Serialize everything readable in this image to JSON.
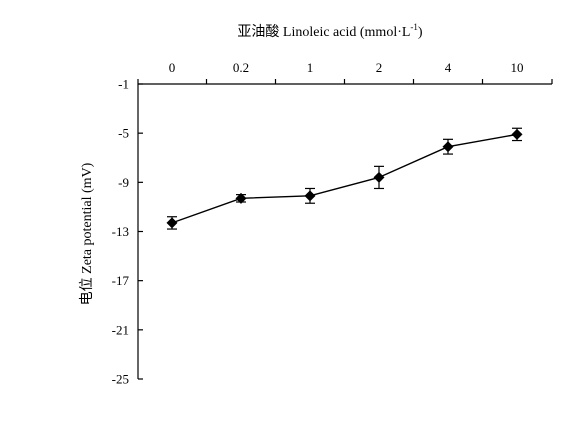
{
  "chart_data": {
    "type": "line",
    "xlabel": "亚油酸 Linoleic acid (mmol·L",
    "xlabel_sup": "-1",
    "xlabel_end": ")",
    "ylabel": "电位 Zeta potential (mV)",
    "categories": [
      "0",
      "0.2",
      "1",
      "2",
      "4",
      "10"
    ],
    "y_ticks": [
      "-1",
      "-5",
      "-9",
      "-13",
      "-17",
      "-21",
      "-25"
    ],
    "ylim": [
      -25,
      -1
    ],
    "x_axis_position": "top",
    "grid": false,
    "legend": "none",
    "series": [
      {
        "values": [
          -12.3,
          -10.3,
          -10.1,
          -8.6,
          -6.1,
          -5.1
        ],
        "errors": [
          0.5,
          0.3,
          0.6,
          0.9,
          0.6,
          0.5
        ],
        "marker": "diamond",
        "color": "#000000"
      }
    ]
  }
}
